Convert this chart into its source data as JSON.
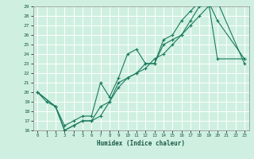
{
  "title": "",
  "xlabel": "Humidex (Indice chaleur)",
  "xlim": [
    -0.5,
    23.5
  ],
  "ylim": [
    16,
    29
  ],
  "xticks": [
    0,
    1,
    2,
    3,
    4,
    5,
    6,
    7,
    8,
    9,
    10,
    11,
    12,
    13,
    14,
    15,
    16,
    17,
    18,
    19,
    20,
    21,
    22,
    23
  ],
  "yticks": [
    16,
    17,
    18,
    19,
    20,
    21,
    22,
    23,
    24,
    25,
    26,
    27,
    28,
    29
  ],
  "bg_color": "#cff0e0",
  "grid_color": "#ffffff",
  "line_color": "#1a7a5e",
  "line1_x": [
    0,
    1,
    2,
    3,
    4,
    5,
    6,
    7,
    8,
    9,
    10,
    11,
    12,
    13,
    14,
    15,
    16,
    17,
    18,
    19,
    20,
    23
  ],
  "line1_y": [
    20,
    19,
    18.5,
    16,
    16.5,
    17,
    17,
    17.5,
    19,
    21,
    21.5,
    22,
    23,
    23,
    25,
    25.5,
    26,
    27.5,
    29,
    29.5,
    27.5,
    23.5
  ],
  "line2_x": [
    0,
    2,
    3,
    4,
    5,
    6,
    7,
    8,
    9,
    10,
    11,
    12,
    13,
    14,
    15,
    16,
    17,
    18,
    19,
    20,
    23
  ],
  "line2_y": [
    20,
    18.5,
    16.5,
    17,
    17.5,
    17.5,
    21,
    19.5,
    21.5,
    24,
    24.5,
    23,
    23,
    25.5,
    26,
    27.5,
    28.5,
    29.5,
    29.5,
    23.5,
    23.5
  ],
  "line3_x": [
    0,
    2,
    3,
    4,
    5,
    6,
    7,
    8,
    9,
    10,
    11,
    12,
    13,
    14,
    15,
    16,
    17,
    18,
    19,
    20,
    23
  ],
  "line3_y": [
    20,
    18.5,
    16,
    16.5,
    17,
    17,
    18.5,
    19,
    20.5,
    21.5,
    22,
    22.5,
    23.5,
    24,
    25,
    26,
    27,
    28,
    29,
    29.5,
    23
  ]
}
